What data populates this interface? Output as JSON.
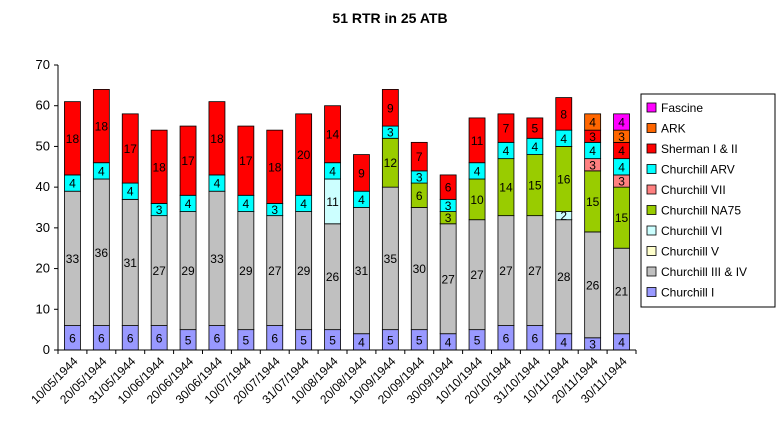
{
  "chart_data": {
    "type": "bar",
    "stacked": true,
    "title": "51 RTR in 25 ATB",
    "xlabel": "",
    "ylabel": "",
    "ylim": [
      0,
      70
    ],
    "yticks": [
      0,
      10,
      20,
      30,
      40,
      50,
      60,
      70
    ],
    "grid": false,
    "legend_position": "right",
    "categories": [
      "10/05/1944",
      "20/05/1944",
      "31/05/1944",
      "10/06/1944",
      "20/06/1944",
      "30/06/1944",
      "10/07/1944",
      "20/07/1944",
      "31/07/1944",
      "10/08/1944",
      "20/08/1944",
      "10/09/1944",
      "20/09/1944",
      "30/09/1944",
      "10/10/1944",
      "20/10/1944",
      "31/10/1944",
      "10/11/1944",
      "20/11/1944",
      "30/11/1944"
    ],
    "series": [
      {
        "name": "Churchill I",
        "color": "#9999ff",
        "values": [
          6,
          6,
          6,
          6,
          5,
          6,
          5,
          6,
          5,
          5,
          4,
          5,
          5,
          4,
          5,
          6,
          6,
          4,
          3,
          4
        ]
      },
      {
        "name": "Churchill III & IV",
        "color": "#c0c0c0",
        "values": [
          33,
          36,
          31,
          27,
          29,
          33,
          29,
          27,
          29,
          26,
          31,
          35,
          30,
          27,
          27,
          27,
          27,
          28,
          26,
          21
        ]
      },
      {
        "name": "Churchill V",
        "color": "#ffffcc",
        "values": [
          0,
          0,
          0,
          0,
          0,
          0,
          0,
          0,
          0,
          0,
          0,
          0,
          0,
          0,
          0,
          0,
          0,
          0,
          0,
          0
        ]
      },
      {
        "name": "Churchill VI",
        "color": "#ccffff",
        "values": [
          0,
          0,
          0,
          0,
          0,
          0,
          0,
          0,
          0,
          11,
          0,
          0,
          0,
          0,
          0,
          0,
          0,
          2,
          0,
          0
        ]
      },
      {
        "name": "Churchill NA75",
        "color": "#99cc00",
        "values": [
          0,
          0,
          0,
          0,
          0,
          0,
          0,
          0,
          0,
          0,
          0,
          12,
          6,
          3,
          10,
          14,
          15,
          16,
          15,
          15
        ]
      },
      {
        "name": "Churchill VII",
        "color": "#ff8080",
        "values": [
          0,
          0,
          0,
          0,
          0,
          0,
          0,
          0,
          0,
          0,
          0,
          0,
          0,
          0,
          0,
          0,
          0,
          0,
          3,
          3
        ]
      },
      {
        "name": "Churchill ARV",
        "color": "#00ffff",
        "values": [
          4,
          4,
          4,
          3,
          4,
          4,
          4,
          3,
          4,
          4,
          4,
          3,
          3,
          3,
          4,
          4,
          4,
          4,
          4,
          4
        ]
      },
      {
        "name": "Sherman I & II",
        "color": "#ff0000",
        "values": [
          18,
          18,
          17,
          18,
          17,
          18,
          17,
          18,
          20,
          14,
          9,
          9,
          7,
          6,
          11,
          7,
          5,
          8,
          3,
          4
        ]
      },
      {
        "name": "ARK",
        "color": "#ff6600",
        "values": [
          0,
          0,
          0,
          0,
          0,
          0,
          0,
          0,
          0,
          0,
          0,
          0,
          0,
          0,
          0,
          0,
          0,
          0,
          4,
          3
        ]
      },
      {
        "name": "Fascine",
        "color": "#ff00ff",
        "values": [
          0,
          0,
          0,
          0,
          0,
          0,
          0,
          0,
          0,
          0,
          0,
          0,
          0,
          0,
          0,
          0,
          0,
          0,
          0,
          4
        ]
      }
    ]
  }
}
